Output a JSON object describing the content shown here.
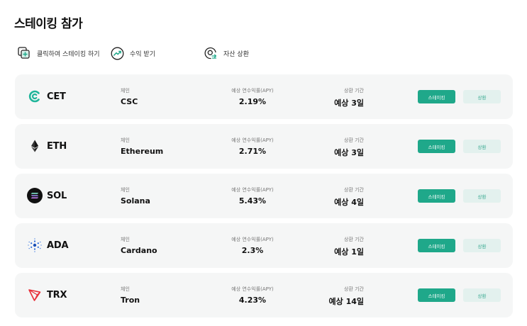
{
  "page_title": "스테이킹 참가",
  "steps": [
    {
      "label": "클릭하여 스테이킹 하기",
      "icon": "add-square-icon"
    },
    {
      "label": "수익 받기",
      "icon": "trend-up-icon"
    },
    {
      "label": "자산 상환",
      "icon": "coin-exchange-icon"
    }
  ],
  "labels": {
    "chain": "체인",
    "apy": "예상 연수익률(APY)",
    "period": "상환 기간",
    "stake_button": "스테이킹",
    "redeem_button": "상환"
  },
  "colors": {
    "accent": "#1fa88a",
    "redeem_bg": "#e3f1ee"
  },
  "coins": [
    {
      "symbol": "CET",
      "chain": "CSC",
      "apy": "2.19%",
      "period": "예상 3일",
      "icon": "coinex-icon"
    },
    {
      "symbol": "ETH",
      "chain": "Ethereum",
      "apy": "2.71%",
      "period": "예상 3일",
      "icon": "ethereum-icon"
    },
    {
      "symbol": "SOL",
      "chain": "Solana",
      "apy": "5.43%",
      "period": "예상 4일",
      "icon": "solana-icon"
    },
    {
      "symbol": "ADA",
      "chain": "Cardano",
      "apy": "2.3%",
      "period": "예상 1일",
      "icon": "cardano-icon"
    },
    {
      "symbol": "TRX",
      "chain": "Tron",
      "apy": "4.23%",
      "period": "예상 14일",
      "icon": "tron-icon"
    }
  ]
}
